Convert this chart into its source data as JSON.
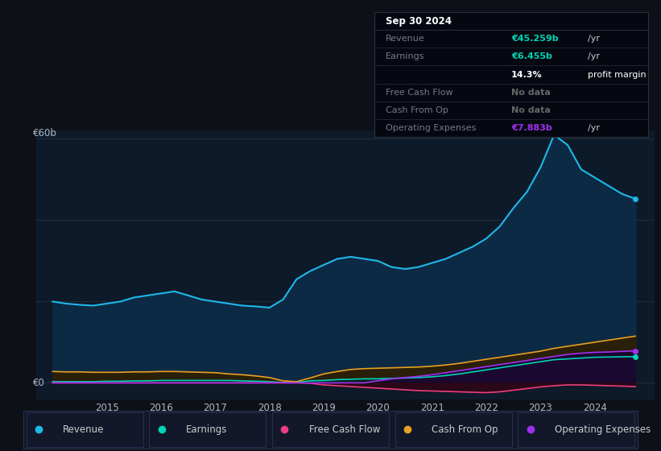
{
  "bg_color": "#0d1117",
  "plot_bg_color": "#0d1a2a",
  "y_label": "€60b",
  "y_zero_label": "€0",
  "years": [
    2014.0,
    2014.25,
    2014.5,
    2014.75,
    2015.0,
    2015.25,
    2015.5,
    2015.75,
    2016.0,
    2016.25,
    2016.5,
    2016.75,
    2017.0,
    2017.25,
    2017.5,
    2017.75,
    2018.0,
    2018.25,
    2018.5,
    2018.75,
    2019.0,
    2019.25,
    2019.5,
    2019.75,
    2020.0,
    2020.25,
    2020.5,
    2020.75,
    2021.0,
    2021.25,
    2021.5,
    2021.75,
    2022.0,
    2022.25,
    2022.5,
    2022.75,
    2023.0,
    2023.25,
    2023.5,
    2023.75,
    2024.0,
    2024.25,
    2024.5,
    2024.75
  ],
  "revenue": [
    20.0,
    19.5,
    19.2,
    19.0,
    19.5,
    20.0,
    21.0,
    21.5,
    22.0,
    22.5,
    21.5,
    20.5,
    20.0,
    19.5,
    19.0,
    18.8,
    18.5,
    20.5,
    25.5,
    27.5,
    29.0,
    30.5,
    31.0,
    30.5,
    30.0,
    28.5,
    28.0,
    28.5,
    29.5,
    30.5,
    32.0,
    33.5,
    35.5,
    38.5,
    43.0,
    47.0,
    53.0,
    61.0,
    58.5,
    52.5,
    50.5,
    48.5,
    46.5,
    45.259
  ],
  "earnings": [
    0.3,
    0.3,
    0.3,
    0.3,
    0.4,
    0.4,
    0.5,
    0.5,
    0.6,
    0.6,
    0.6,
    0.6,
    0.6,
    0.6,
    0.5,
    0.4,
    0.3,
    0.1,
    0.1,
    0.5,
    0.6,
    0.8,
    0.9,
    1.0,
    1.0,
    1.1,
    1.2,
    1.3,
    1.5,
    1.8,
    2.2,
    2.7,
    3.2,
    3.7,
    4.2,
    4.7,
    5.2,
    5.7,
    5.9,
    6.1,
    6.3,
    6.35,
    6.42,
    6.455
  ],
  "free_cash_flow": [
    0.0,
    0.0,
    0.0,
    0.0,
    0.0,
    0.0,
    0.0,
    0.0,
    0.0,
    0.0,
    0.0,
    0.0,
    0.0,
    0.0,
    0.0,
    0.0,
    0.0,
    0.0,
    0.0,
    -0.1,
    -0.5,
    -0.7,
    -0.9,
    -1.1,
    -1.3,
    -1.5,
    -1.7,
    -1.9,
    -2.0,
    -2.1,
    -2.2,
    -2.3,
    -2.4,
    -2.2,
    -1.8,
    -1.4,
    -1.0,
    -0.7,
    -0.5,
    -0.5,
    -0.6,
    -0.7,
    -0.8,
    -0.9
  ],
  "cash_from_op": [
    2.8,
    2.7,
    2.7,
    2.6,
    2.6,
    2.6,
    2.7,
    2.7,
    2.8,
    2.8,
    2.7,
    2.6,
    2.5,
    2.2,
    2.0,
    1.7,
    1.3,
    0.5,
    0.3,
    1.2,
    2.2,
    2.8,
    3.3,
    3.5,
    3.6,
    3.7,
    3.8,
    3.9,
    4.1,
    4.4,
    4.8,
    5.3,
    5.8,
    6.3,
    6.8,
    7.3,
    7.8,
    8.5,
    9.0,
    9.5,
    10.0,
    10.5,
    11.0,
    11.5
  ],
  "operating_expenses": [
    0.0,
    0.0,
    0.0,
    0.0,
    0.0,
    0.0,
    0.0,
    0.0,
    0.0,
    0.0,
    0.0,
    0.0,
    0.0,
    0.0,
    0.0,
    0.0,
    0.0,
    0.0,
    0.0,
    0.0,
    0.0,
    0.0,
    0.0,
    0.0,
    0.5,
    1.0,
    1.3,
    1.6,
    2.0,
    2.5,
    3.0,
    3.5,
    4.0,
    4.5,
    5.0,
    5.5,
    6.0,
    6.5,
    7.0,
    7.3,
    7.5,
    7.6,
    7.75,
    7.883
  ],
  "revenue_color": "#1eb8e8",
  "earnings_color": "#00d4b4",
  "free_cash_flow_color": "#e84080",
  "cash_from_op_color": "#e8a020",
  "operating_expenses_color": "#a030f0",
  "grid_color": "#2a3a4a",
  "text_color": "#b0b8c8",
  "tooltip_bg": "#050810",
  "xlim": [
    2013.7,
    2025.1
  ],
  "ylim": [
    -4,
    62
  ],
  "xtick_years": [
    2015,
    2016,
    2017,
    2018,
    2019,
    2020,
    2021,
    2022,
    2023,
    2024
  ],
  "legend_items": [
    {
      "label": "Revenue",
      "color": "#1eb8e8"
    },
    {
      "label": "Earnings",
      "color": "#00d4b4"
    },
    {
      "label": "Free Cash Flow",
      "color": "#e84080"
    },
    {
      "label": "Cash From Op",
      "color": "#e8a020"
    },
    {
      "label": "Operating Expenses",
      "color": "#a030f0"
    }
  ],
  "tooltip_title": "Sep 30 2024",
  "tooltip_rows": [
    {
      "label": "Revenue",
      "value": "€45.259b",
      "suffix": "/yr",
      "value_color": "#00d4b4",
      "suffix_color": "#cccccc"
    },
    {
      "label": "Earnings",
      "value": "€6.455b",
      "suffix": "/yr",
      "value_color": "#00d4b4",
      "suffix_color": "#cccccc"
    },
    {
      "label": "",
      "value": "14.3%",
      "suffix": "profit margin",
      "value_color": "#ffffff",
      "suffix_color": "#ffffff"
    },
    {
      "label": "Free Cash Flow",
      "value": "No data",
      "suffix": "",
      "value_color": "#666666",
      "suffix_color": "#666666"
    },
    {
      "label": "Cash From Op",
      "value": "No data",
      "suffix": "",
      "value_color": "#666666",
      "suffix_color": "#666666"
    },
    {
      "label": "Operating Expenses",
      "value": "€7.883b",
      "suffix": "/yr",
      "value_color": "#a030f0",
      "suffix_color": "#cccccc"
    }
  ]
}
